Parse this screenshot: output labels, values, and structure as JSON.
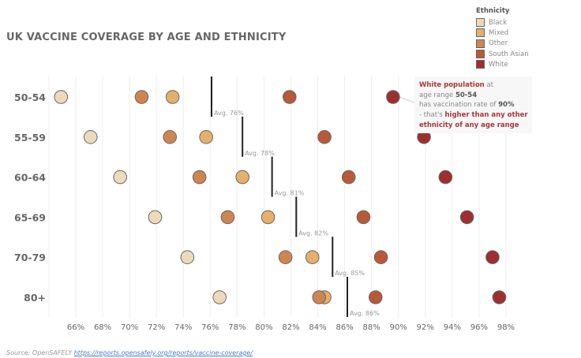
{
  "chart_data": {
    "type": "scatter",
    "title": "UK VACCINE COVERAGE BY AGE AND ETHNICITY",
    "xlabel": "",
    "ylabel": "",
    "xlim": [
      64,
      99
    ],
    "x_ticks": [
      "66%",
      "68%",
      "70%",
      "72%",
      "74%",
      "76%",
      "78%",
      "80%",
      "82%",
      "84%",
      "86%",
      "88%",
      "90%",
      "92%",
      "94%",
      "96%",
      "98%"
    ],
    "x_tick_values": [
      66,
      68,
      70,
      72,
      74,
      76,
      78,
      80,
      82,
      84,
      86,
      88,
      90,
      92,
      94,
      96,
      98
    ],
    "grid": true,
    "legend_title": "Ethnicity",
    "legend_position": "top-right",
    "categories": [
      "50-54",
      "55-59",
      "60-64",
      "65-69",
      "70-79",
      "80+"
    ],
    "series": [
      {
        "name": "Black",
        "color": "#eddabb",
        "values": [
          64.9,
          67.1,
          69.3,
          71.9,
          74.3,
          76.7
        ]
      },
      {
        "name": "Mixed",
        "color": "#e6af6a",
        "values": [
          73.2,
          75.7,
          78.4,
          80.3,
          83.6,
          84.5
        ]
      },
      {
        "name": "Other",
        "color": "#cf8550",
        "values": [
          70.9,
          73.0,
          75.2,
          77.3,
          81.6,
          84.1
        ]
      },
      {
        "name": "South Asian",
        "color": "#b85a38",
        "values": [
          81.9,
          84.5,
          86.3,
          87.4,
          88.7,
          88.3
        ]
      },
      {
        "name": "White",
        "color": "#9e2f2e",
        "values": [
          89.6,
          91.9,
          93.5,
          95.1,
          97.0,
          97.5
        ]
      }
    ],
    "averages": [
      76.1,
      78.4,
      80.6,
      82.4,
      85.1,
      86.2
    ],
    "average_labels": [
      "Avg. 76%",
      "Avg. 78%",
      "Avg. 81%",
      "Avg. 82%",
      "Avg. 85%",
      "Avg. 86%"
    ]
  },
  "tooltip": {
    "l1a": "White population",
    "l1b": " at",
    "l2a": "age range ",
    "l2b": "50-54",
    "l3a": "has vaccination rate of  ",
    "l3b": "90%",
    "l4a": "- that's ",
    "l4b": "higher than any other",
    "l5": "ethnicity of any age range"
  },
  "source": {
    "label": "Source: OpenSAFELY ",
    "link": "https://reports.opensafely.org/reports/vaccine-coverage/"
  }
}
